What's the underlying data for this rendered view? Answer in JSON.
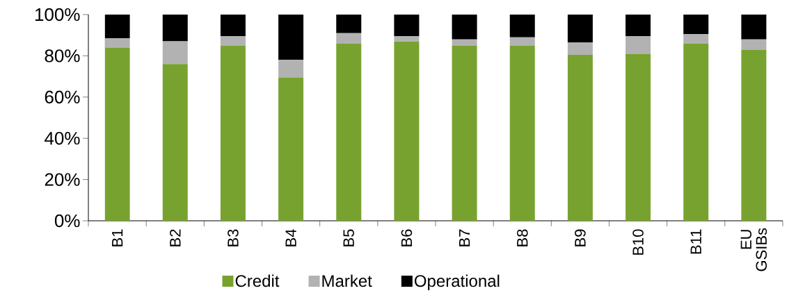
{
  "chart_data": {
    "type": "bar",
    "stacked": true,
    "categories": [
      "B1",
      "B2",
      "B3",
      "B4",
      "B5",
      "B6",
      "B7",
      "B8",
      "B9",
      "B10",
      "B11",
      "EU GSIBs"
    ],
    "series": [
      {
        "name": "Credit",
        "color": "#78a22f",
        "values": [
          84,
          76,
          85,
          69.5,
          86,
          87,
          85,
          85,
          80.5,
          81,
          86,
          83
        ]
      },
      {
        "name": "Market",
        "color": "#b2b2b2",
        "values": [
          4.5,
          11,
          4.5,
          8.5,
          5,
          2.5,
          3,
          4,
          6,
          8.5,
          4.5,
          5
        ]
      },
      {
        "name": "Operational",
        "color": "#000000",
        "values": [
          11.5,
          13,
          10.5,
          22,
          9,
          10.5,
          12,
          11,
          13.5,
          10.5,
          9.5,
          12
        ]
      }
    ],
    "ylim": [
      0,
      100
    ],
    "yticks": [
      {
        "value": 0,
        "label": "0%"
      },
      {
        "value": 20,
        "label": "20%"
      },
      {
        "value": 40,
        "label": "40%"
      },
      {
        "value": 60,
        "label": "60%"
      },
      {
        "value": 80,
        "label": "80%"
      },
      {
        "value": 100,
        "label": "100%"
      }
    ],
    "legend": "bottom"
  }
}
